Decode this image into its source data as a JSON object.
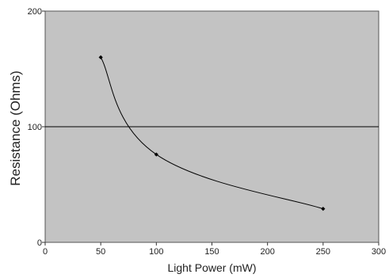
{
  "chart_data": {
    "type": "line",
    "xlabel": "Light Power (mW)",
    "ylabel": "Resistance (Ohms)",
    "xlim": [
      0,
      300
    ],
    "ylim": [
      0,
      200
    ],
    "x_ticks": [
      "0",
      "50",
      "100",
      "150",
      "200",
      "250",
      "300"
    ],
    "y_ticks": [
      "0",
      "100",
      "200"
    ],
    "grid": "horizontal line at y=100",
    "series": [
      {
        "x": [
          50,
          100,
          250
        ],
        "values": [
          160,
          76,
          29
        ],
        "smoothed": true
      }
    ],
    "colors": {
      "plot_background": "#c3c3c3",
      "line": "#000000",
      "border": "#555555"
    }
  }
}
